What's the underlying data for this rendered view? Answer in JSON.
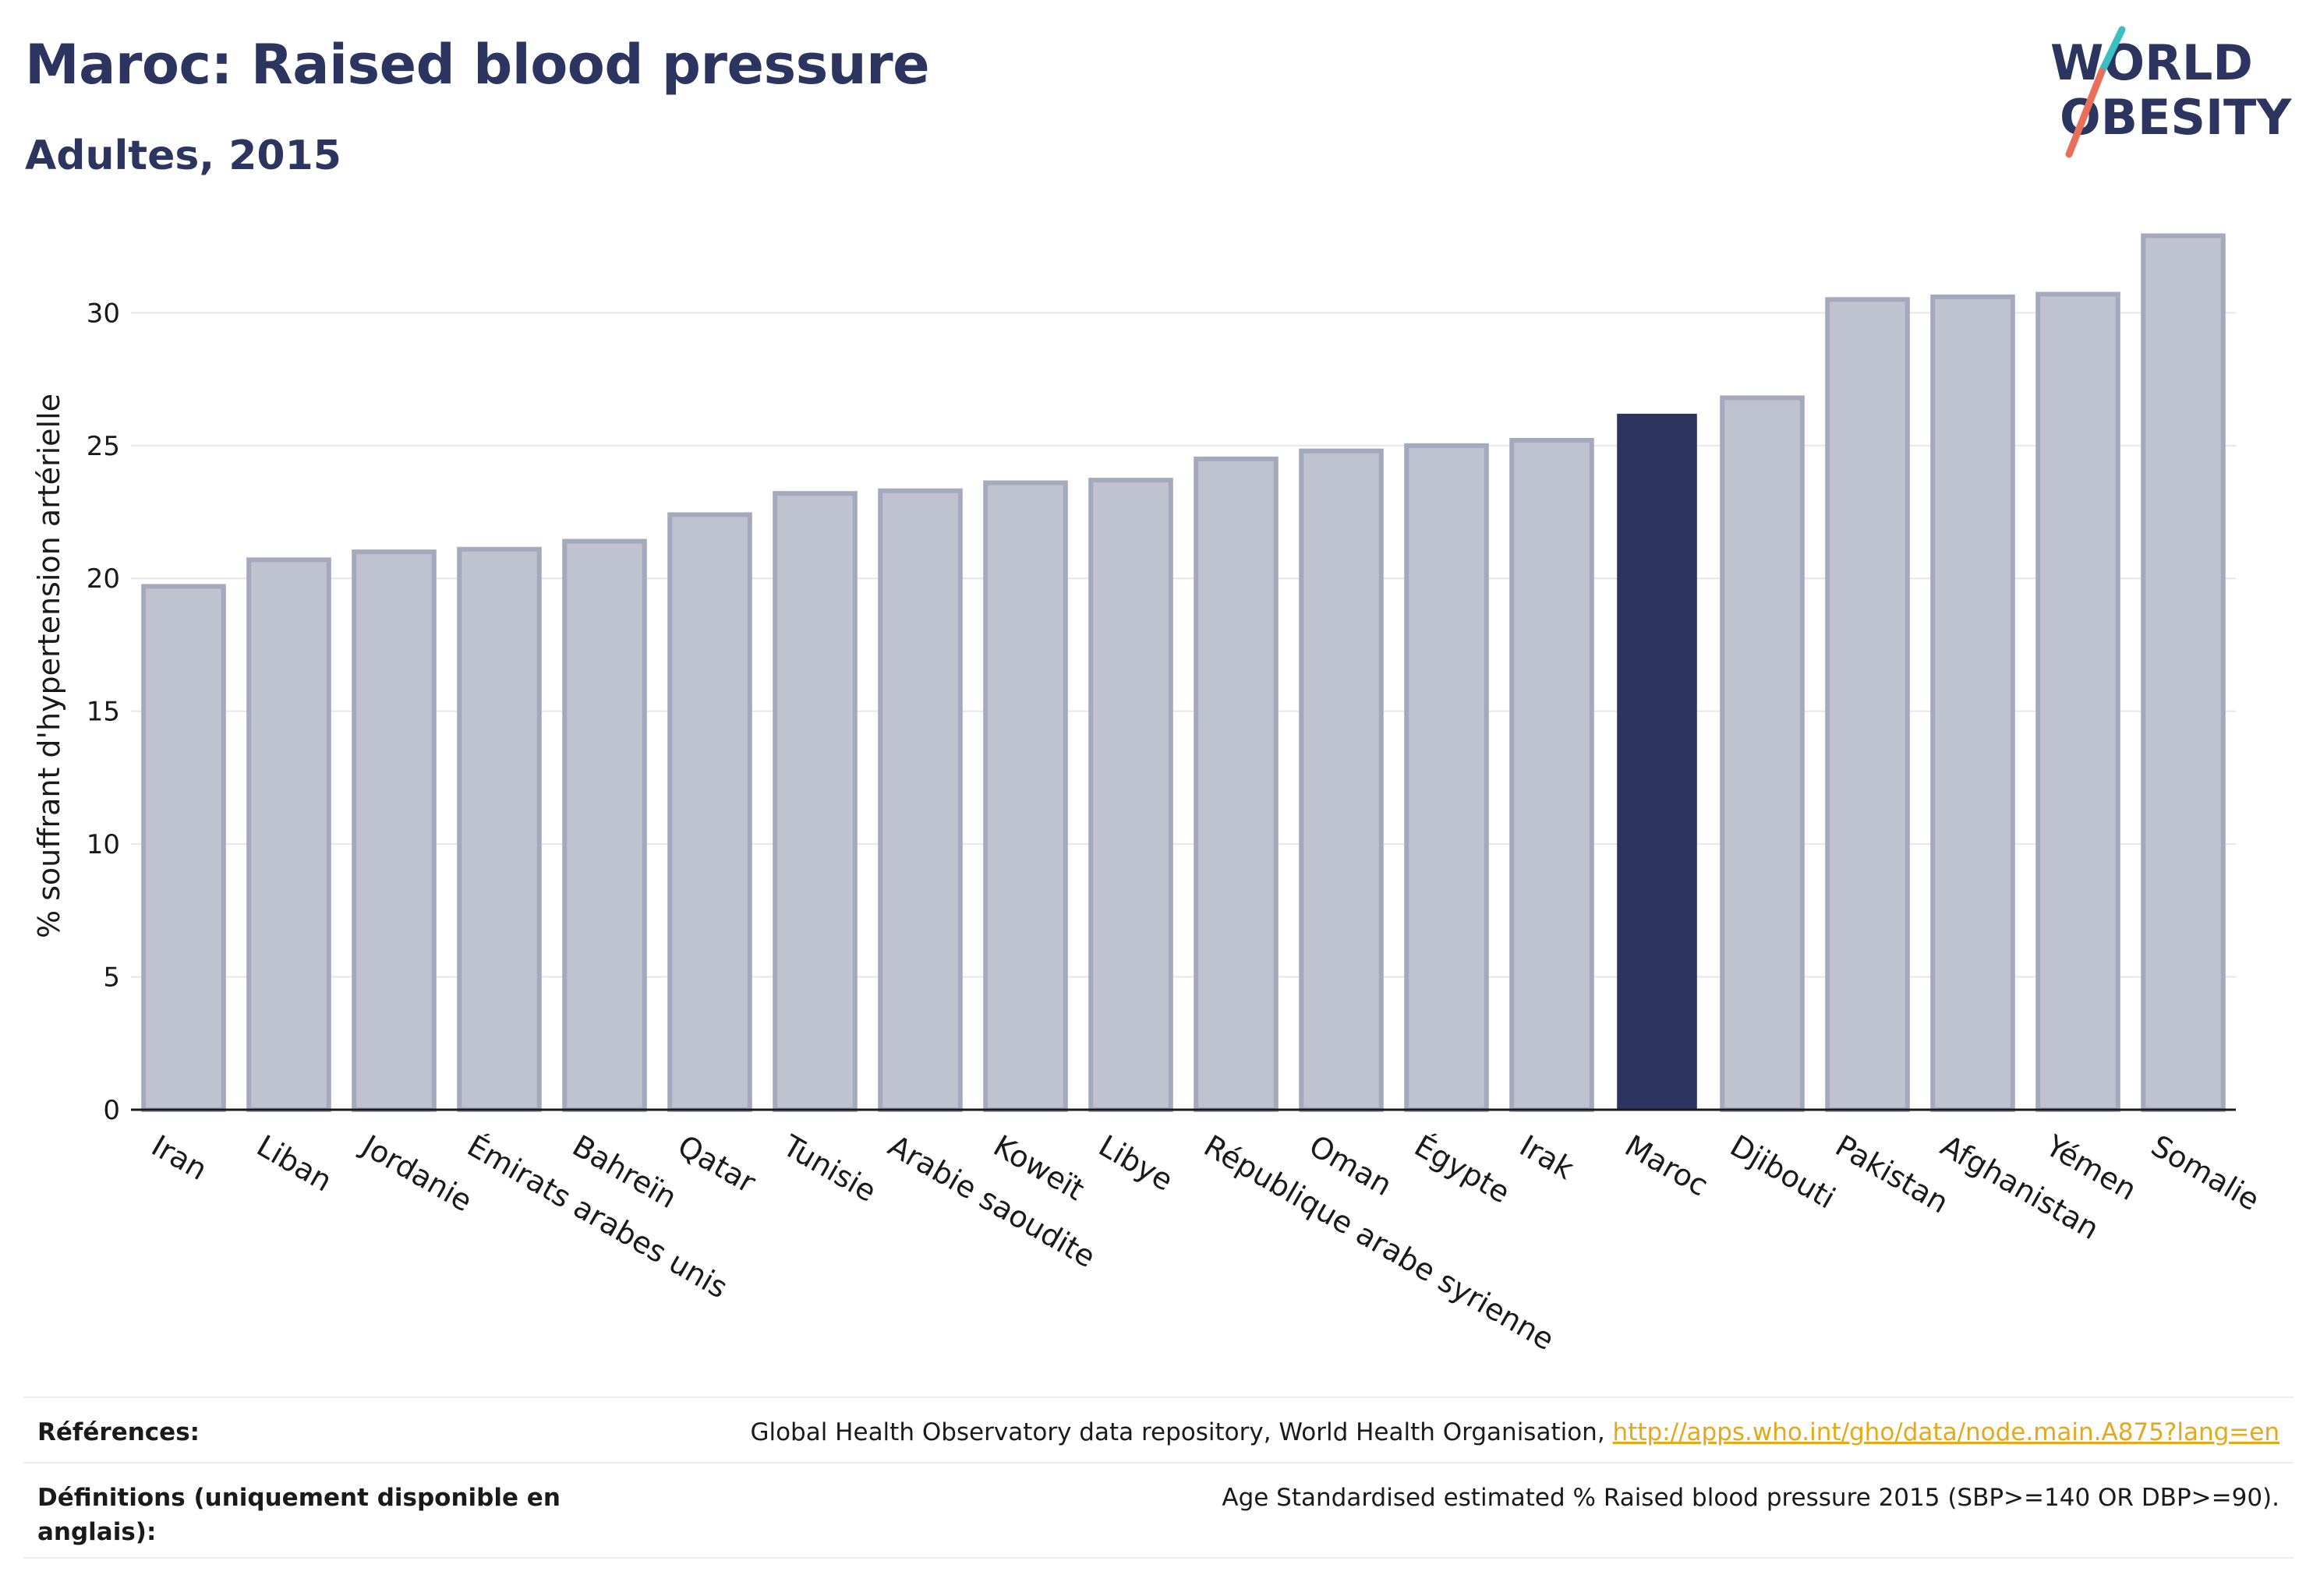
{
  "header": {
    "title": "Maroc: Raised blood pressure",
    "subtitle": "Adultes, 2015"
  },
  "logo": {
    "line1": "WORLD",
    "line2": "OBESITY"
  },
  "colors": {
    "highlight": "#2b3560",
    "bar_fill": "#bfc2cf",
    "bar_stroke": "#a4a9bd",
    "grid": "#e6e6e6",
    "logo_teal": "#3bbfc1",
    "logo_coral": "#e8705a",
    "link": "#e6a817"
  },
  "chart_data": {
    "type": "bar",
    "ylabel": "% souffrant d'hypertension artérielle",
    "xlabel": "",
    "ylim": [
      0,
      34
    ],
    "yticks": [
      0,
      5,
      10,
      15,
      20,
      25,
      30
    ],
    "grid": true,
    "highlight_category": "Maroc",
    "categories": [
      "Iran",
      "Liban",
      "Jordanie",
      "Émirats arabes unis",
      "Bahreïn",
      "Qatar",
      "Tunisie",
      "Arabie saoudite",
      "Koweït",
      "Libye",
      "République arabe syrienne",
      "Oman",
      "Égypte",
      "Irak",
      "Maroc",
      "Djibouti",
      "Pakistan",
      "Afghanistan",
      "Yémen",
      "Somalie"
    ],
    "values": [
      19.7,
      20.7,
      21.0,
      21.1,
      21.4,
      22.4,
      23.2,
      23.3,
      23.6,
      23.7,
      24.5,
      24.8,
      25.0,
      25.2,
      26.2,
      26.8,
      30.5,
      30.6,
      30.7,
      32.9
    ]
  },
  "footer": {
    "references_label": "Références:",
    "references_text": "Global Health Observatory data repository, World Health Organisation,",
    "references_link": "http://apps.who.int/gho/data/node.main.A875?lang=en",
    "definitions_label": "Définitions (uniquement disponible en anglais):",
    "definitions_text": "Age Standardised estimated % Raised blood pressure 2015 (SBP>=140 OR DBP>=90)."
  }
}
